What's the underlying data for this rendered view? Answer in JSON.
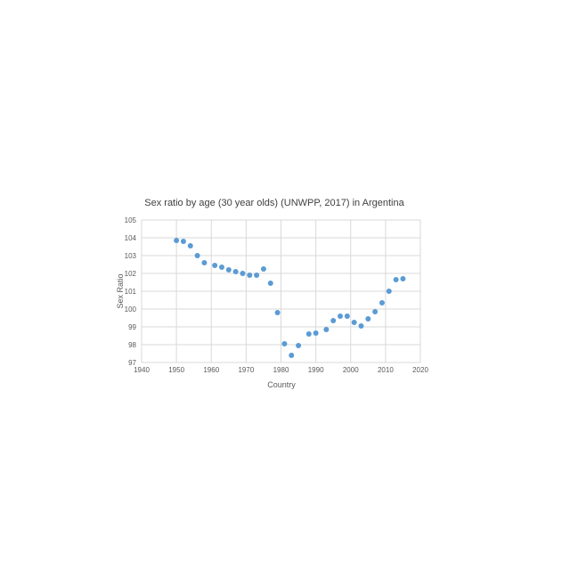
{
  "chart_data": {
    "type": "scatter",
    "title": "Sex ratio by age (30 year olds) (UNWPP, 2017) in Argentina",
    "xlabel": "Country",
    "ylabel": "Sex Ratio",
    "xlim": [
      1940,
      2020
    ],
    "ylim": [
      97,
      105
    ],
    "x_ticks": [
      1940,
      1950,
      1960,
      1970,
      1980,
      1990,
      2000,
      2010,
      2020
    ],
    "y_ticks": [
      97,
      98,
      99,
      100,
      101,
      102,
      103,
      104,
      105
    ],
    "grid": true,
    "legend": "none",
    "marker_color": "#5b9bd5",
    "points": [
      {
        "x": 1950,
        "y": 103.85
      },
      {
        "x": 1952,
        "y": 103.8
      },
      {
        "x": 1954,
        "y": 103.55
      },
      {
        "x": 1956,
        "y": 103.0
      },
      {
        "x": 1958,
        "y": 102.6
      },
      {
        "x": 1961,
        "y": 102.45
      },
      {
        "x": 1963,
        "y": 102.35
      },
      {
        "x": 1965,
        "y": 102.2
      },
      {
        "x": 1967,
        "y": 102.1
      },
      {
        "x": 1969,
        "y": 102.0
      },
      {
        "x": 1971,
        "y": 101.9
      },
      {
        "x": 1973,
        "y": 101.9
      },
      {
        "x": 1975,
        "y": 102.25
      },
      {
        "x": 1977,
        "y": 101.45
      },
      {
        "x": 1979,
        "y": 99.8
      },
      {
        "x": 1981,
        "y": 98.05
      },
      {
        "x": 1983,
        "y": 97.4
      },
      {
        "x": 1985,
        "y": 97.95
      },
      {
        "x": 1988,
        "y": 98.6
      },
      {
        "x": 1990,
        "y": 98.65
      },
      {
        "x": 1993,
        "y": 98.85
      },
      {
        "x": 1995,
        "y": 99.35
      },
      {
        "x": 1997,
        "y": 99.6
      },
      {
        "x": 1999,
        "y": 99.6
      },
      {
        "x": 2001,
        "y": 99.25
      },
      {
        "x": 2003,
        "y": 99.05
      },
      {
        "x": 2005,
        "y": 99.45
      },
      {
        "x": 2007,
        "y": 99.85
      },
      {
        "x": 2009,
        "y": 100.35
      },
      {
        "x": 2011,
        "y": 101.0
      },
      {
        "x": 2013,
        "y": 101.65
      },
      {
        "x": 2015,
        "y": 101.7
      }
    ]
  }
}
